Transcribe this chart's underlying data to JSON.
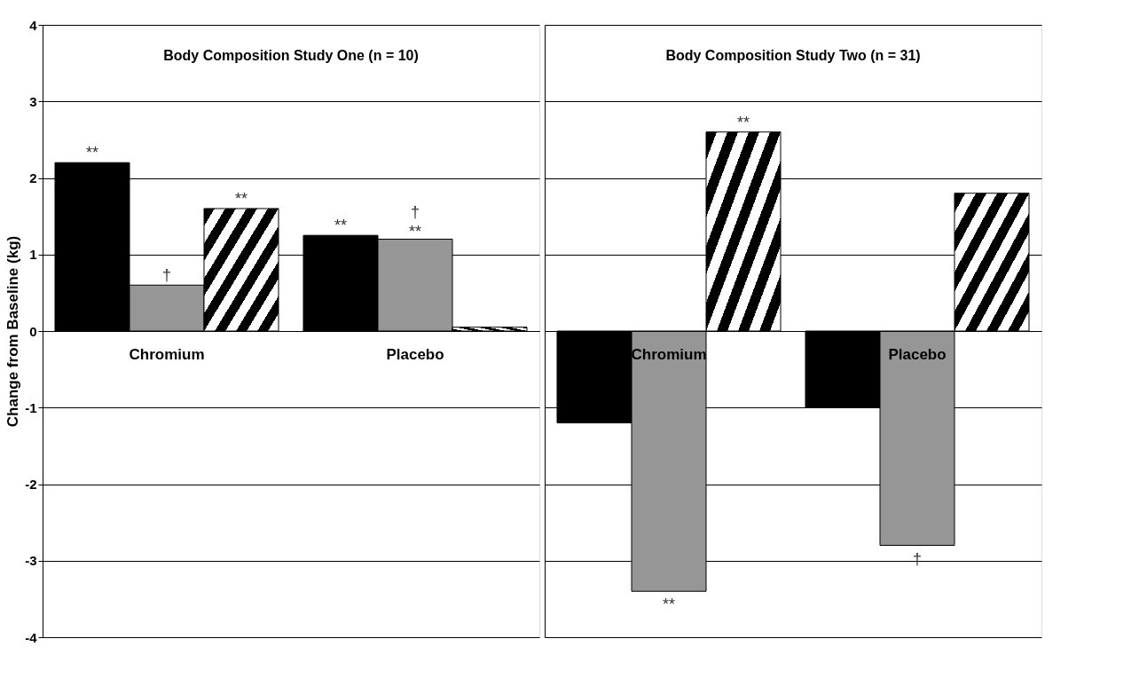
{
  "chart_data": [
    {
      "type": "bar",
      "title": "Body Composition Study One (n = 10)",
      "ylabel": "Change from Baseline (kg)",
      "categories": [
        "Chromium",
        "Placebo"
      ],
      "series": [
        {
          "color": "#000000",
          "values": [
            2.2,
            1.25
          ],
          "value_labels": [
            "**",
            "**"
          ]
        },
        {
          "color": "#969696",
          "values": [
            0.6,
            1.2
          ],
          "value_labels": [
            "†",
            "†\n**"
          ]
        },
        {
          "color": "#000000",
          "values": [
            1.6,
            0.05
          ],
          "value_labels": [
            "**",
            null
          ]
        }
      ],
      "ylim": [
        -4,
        4
      ],
      "yticks": [
        -4,
        -3,
        -2,
        -1,
        0,
        1,
        2,
        3,
        4
      ],
      "grid": "y"
    },
    {
      "type": "bar",
      "title": "Body Composition Study Two (n = 31)",
      "categories": [
        "Chromium",
        "Placebo"
      ],
      "series": [
        {
          "color": "#000000",
          "values": [
            -1.2,
            -1.0
          ]
        },
        {
          "color": "#969696",
          "values": [
            -3.4,
            -2.8
          ],
          "value_labels": [
            "**",
            "†"
          ]
        },
        {
          "color": "#000000",
          "values": [
            2.6,
            1.8
          ],
          "value_labels": [
            "**",
            null
          ]
        }
      ],
      "ylim": [
        -4,
        4
      ],
      "yticks": [
        -4,
        -3,
        -2,
        -1,
        0,
        1,
        2,
        3,
        4
      ],
      "grid": "y",
      "tick_labels": "x"
    }
  ]
}
